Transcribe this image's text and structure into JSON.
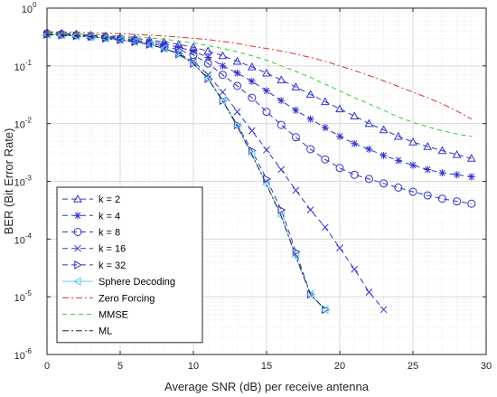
{
  "chart_data": {
    "type": "line",
    "xlabel": "Average SNR (dB) per receive antenna",
    "ylabel": "BER (Bit Error Rate)",
    "xlim": [
      0,
      30
    ],
    "ylim": [
      1e-06,
      1
    ],
    "yscale": "log",
    "grid": true,
    "legend_position": "bottom-left",
    "x_ticks": [
      "0",
      "5",
      "10",
      "15",
      "20",
      "25",
      "30"
    ],
    "y_tick_mantissa": "10",
    "y_tick_exponents": [
      "0",
      "-1",
      "-2",
      "-3",
      "-4",
      "-5",
      "-6"
    ],
    "series": [
      {
        "name": "k = 2",
        "color": "#3333cc",
        "dash": "6,4",
        "marker": "triangle-up",
        "x": [
          0,
          1,
          2,
          3,
          4,
          5,
          6,
          7,
          8,
          9,
          10,
          11,
          12,
          13,
          14,
          15,
          16,
          17,
          18,
          19,
          20,
          21,
          22,
          23,
          24,
          25,
          26,
          27,
          28,
          29
        ],
        "y": [
          0.38,
          0.37,
          0.355,
          0.34,
          0.33,
          0.315,
          0.3,
          0.28,
          0.26,
          0.235,
          0.21,
          0.18,
          0.15,
          0.12,
          0.096,
          0.075,
          0.057,
          0.043,
          0.032,
          0.024,
          0.018,
          0.0135,
          0.01,
          0.0078,
          0.006,
          0.0048,
          0.004,
          0.0034,
          0.0029,
          0.0025
        ]
      },
      {
        "name": "k = 4",
        "color": "#3333cc",
        "dash": "6,4",
        "marker": "asterisk",
        "x": [
          0,
          1,
          2,
          3,
          4,
          5,
          6,
          7,
          8,
          9,
          10,
          11,
          12,
          13,
          14,
          15,
          16,
          17,
          18,
          19,
          20,
          21,
          22,
          23,
          24,
          25,
          26,
          27,
          28,
          29
        ],
        "y": [
          0.37,
          0.36,
          0.345,
          0.33,
          0.32,
          0.3,
          0.28,
          0.26,
          0.24,
          0.21,
          0.18,
          0.14,
          0.1,
          0.075,
          0.054,
          0.037,
          0.025,
          0.017,
          0.012,
          0.0085,
          0.006,
          0.0045,
          0.0036,
          0.0028,
          0.0023,
          0.0019,
          0.0016,
          0.0014,
          0.0013,
          0.0012
        ]
      },
      {
        "name": "k = 8",
        "color": "#3333cc",
        "dash": "6,4",
        "marker": "circle",
        "x": [
          0,
          1,
          2,
          3,
          4,
          5,
          6,
          7,
          8,
          9,
          10,
          11,
          12,
          13,
          14,
          15,
          16,
          17,
          18,
          19,
          20,
          21,
          22,
          23,
          24,
          25,
          26,
          27,
          28,
          29
        ],
        "y": [
          0.36,
          0.35,
          0.34,
          0.325,
          0.31,
          0.29,
          0.27,
          0.245,
          0.22,
          0.19,
          0.155,
          0.11,
          0.07,
          0.045,
          0.028,
          0.016,
          0.0095,
          0.0058,
          0.0036,
          0.0024,
          0.0017,
          0.0013,
          0.0011,
          0.00092,
          0.00078,
          0.00066,
          0.00057,
          0.0005,
          0.00045,
          0.00041
        ]
      },
      {
        "name": "k = 16",
        "color": "#3333cc",
        "dash": "6,4",
        "marker": "x",
        "x": [
          0,
          1,
          2,
          3,
          4,
          5,
          6,
          7,
          8,
          9,
          10,
          11,
          12,
          13,
          14,
          15,
          16,
          17,
          18,
          19,
          20,
          21,
          22,
          23
        ],
        "y": [
          0.35,
          0.34,
          0.33,
          0.32,
          0.3,
          0.28,
          0.26,
          0.235,
          0.2,
          0.165,
          0.12,
          0.07,
          0.035,
          0.016,
          0.0075,
          0.0035,
          0.0016,
          0.0007,
          0.00032,
          0.00016,
          7e-05,
          3e-05,
          1.2e-05,
          6e-06
        ]
      },
      {
        "name": "k = 32",
        "color": "#3333cc",
        "dash": "6,4",
        "marker": "triangle-right",
        "x": [
          0,
          1,
          2,
          3,
          4,
          5,
          6,
          7,
          8,
          9,
          10,
          11,
          12,
          13,
          14,
          15,
          16,
          17,
          18,
          19
        ],
        "y": [
          0.35,
          0.34,
          0.33,
          0.32,
          0.3,
          0.28,
          0.26,
          0.235,
          0.2,
          0.16,
          0.11,
          0.06,
          0.025,
          0.0095,
          0.0034,
          0.0011,
          0.00032,
          6e-05,
          1.1e-05,
          6e-06
        ]
      },
      {
        "name": "Sphere Decoding",
        "color": "#66ccee",
        "dash": "",
        "marker": "triangle-left",
        "x": [
          0,
          1,
          2,
          3,
          4,
          5,
          6,
          7,
          8,
          9,
          10,
          11,
          12,
          13,
          14,
          15,
          16,
          17,
          18,
          19
        ],
        "y": [
          0.35,
          0.34,
          0.33,
          0.32,
          0.3,
          0.28,
          0.26,
          0.235,
          0.2,
          0.16,
          0.11,
          0.06,
          0.025,
          0.009,
          0.0029,
          0.00088,
          0.00025,
          5e-05,
          1.1e-05,
          6e-06
        ]
      },
      {
        "name": "Zero Forcing",
        "color": "#dd3333",
        "dash": "7,3,2,3",
        "marker": "none",
        "x": [
          0,
          1,
          2,
          3,
          4,
          5,
          6,
          7,
          8,
          9,
          10,
          11,
          12,
          13,
          14,
          15,
          16,
          17,
          18,
          19,
          20,
          21,
          22,
          23,
          24,
          25,
          26,
          27,
          28,
          29
        ],
        "y": [
          0.39,
          0.385,
          0.38,
          0.375,
          0.37,
          0.36,
          0.35,
          0.34,
          0.33,
          0.315,
          0.3,
          0.285,
          0.265,
          0.245,
          0.22,
          0.2,
          0.18,
          0.16,
          0.14,
          0.12,
          0.1,
          0.083,
          0.068,
          0.055,
          0.044,
          0.035,
          0.028,
          0.022,
          0.0165,
          0.012
        ]
      },
      {
        "name": "MMSE",
        "color": "#33cc33",
        "dash": "5,4",
        "marker": "none",
        "x": [
          0,
          1,
          2,
          3,
          4,
          5,
          6,
          7,
          8,
          9,
          10,
          11,
          12,
          13,
          14,
          15,
          16,
          17,
          18,
          19,
          20,
          21,
          22,
          23,
          24,
          25,
          26,
          27,
          28,
          29
        ],
        "y": [
          0.37,
          0.36,
          0.355,
          0.35,
          0.34,
          0.33,
          0.32,
          0.305,
          0.29,
          0.27,
          0.25,
          0.225,
          0.2,
          0.175,
          0.15,
          0.125,
          0.1,
          0.08,
          0.063,
          0.048,
          0.037,
          0.028,
          0.022,
          0.017,
          0.013,
          0.0105,
          0.0088,
          0.0075,
          0.0066,
          0.006
        ]
      },
      {
        "name": "ML",
        "color": "#222222",
        "dash": "7,3,2,3",
        "marker": "none",
        "x": [
          0,
          1,
          2,
          3,
          4,
          5,
          6,
          7,
          8,
          9,
          10,
          11,
          12,
          13,
          14,
          15,
          16,
          17,
          18,
          19
        ],
        "y": [
          0.35,
          0.34,
          0.33,
          0.32,
          0.3,
          0.28,
          0.26,
          0.235,
          0.2,
          0.16,
          0.11,
          0.06,
          0.025,
          0.009,
          0.0029,
          0.00088,
          0.00025,
          5e-05,
          1.1e-05,
          6e-06
        ]
      }
    ]
  }
}
